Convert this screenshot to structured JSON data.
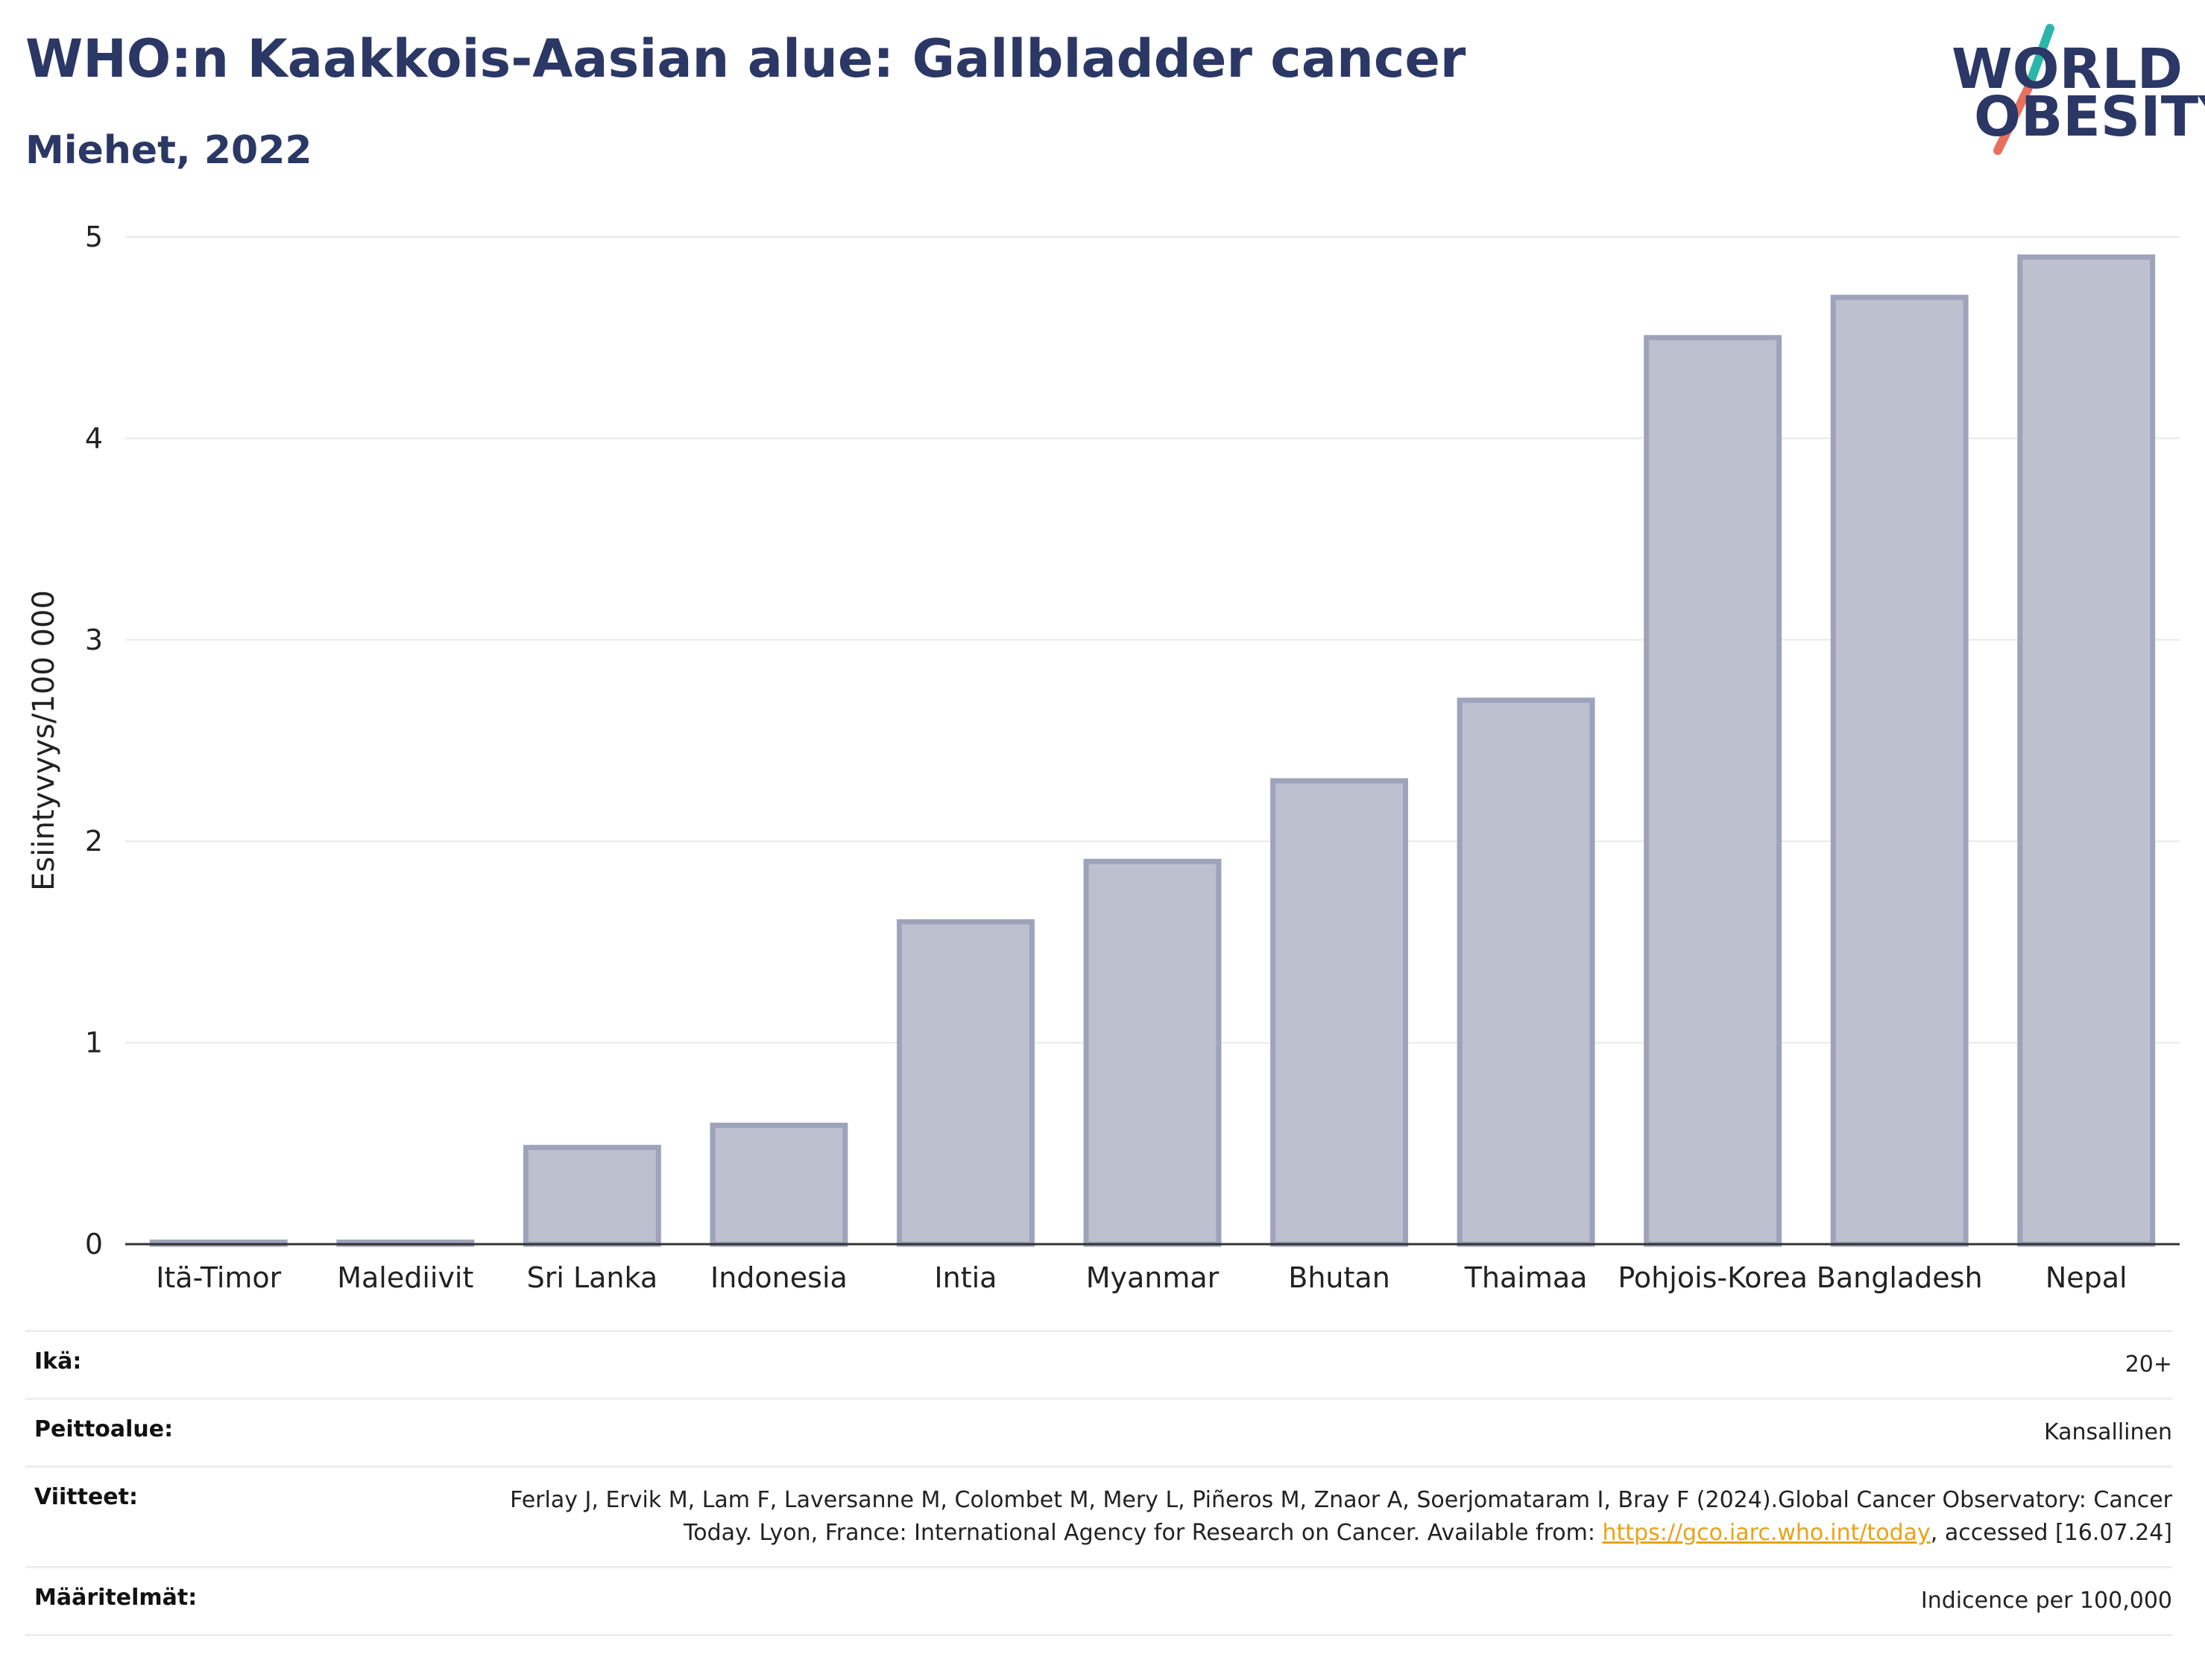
{
  "header": {
    "title": "WHO:n Kaakkois-Aasian alue: Gallbladder cancer",
    "subtitle": "Miehet, 2022"
  },
  "logo": {
    "line1": "WORLD",
    "line2": "OBESITY",
    "accent_top": "#2ab7a9",
    "accent_bottom": "#e8705f"
  },
  "chart_data": {
    "type": "bar",
    "ylabel": "Esiintyvyys/100 000",
    "ylim": [
      0,
      5
    ],
    "yticks": [
      0,
      1,
      2,
      3,
      4,
      5
    ],
    "grid": true,
    "categories": [
      "Itä-Timor",
      "Malediivit",
      "Sri Lanka",
      "Indonesia",
      "Intia",
      "Myanmar",
      "Bhutan",
      "Thaimaa",
      "Pohjois-Korea",
      "Bangladesh",
      "Nepal"
    ],
    "values": [
      0.01,
      0.01,
      0.48,
      0.59,
      1.6,
      1.9,
      2.3,
      2.7,
      4.5,
      4.7,
      4.9
    ],
    "bar_fill": "#bcc0cf",
    "bar_stroke": "#9ea3bb"
  },
  "meta": {
    "rows": [
      {
        "key": "Ikä:",
        "value": "20+"
      },
      {
        "key": "Peittoalue:",
        "value": "Kansallinen"
      },
      {
        "key": "Viitteet:",
        "value_pre": "Ferlay J, Ervik M, Lam F, Laversanne M, Colombet M, Mery L, Piñeros M, Znaor A, Soerjomataram I, Bray F (2024).Global Cancer Observatory: Cancer Today. Lyon, France: International Agency for Research on Cancer. Available from: ",
        "link": "https://gco.iarc.who.int/today",
        "value_post": ", accessed [16.07.24]"
      },
      {
        "key": "Määritelmät:",
        "value": "Indicence per 100,000"
      }
    ]
  }
}
